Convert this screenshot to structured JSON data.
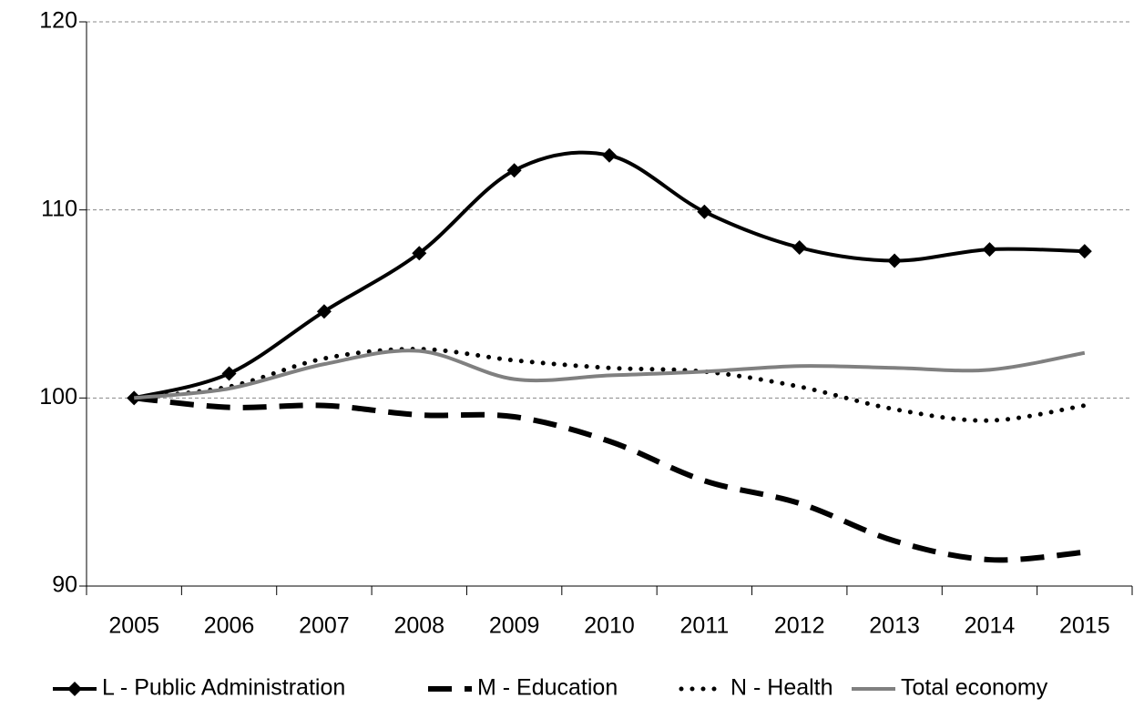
{
  "chart_data": {
    "type": "line",
    "categories": [
      "2005",
      "2006",
      "2007",
      "2008",
      "2009",
      "2010",
      "2011",
      "2012",
      "2013",
      "2014",
      "2015"
    ],
    "series": [
      {
        "name": "L - Public Administration",
        "color": "#000000",
        "line_style": "solid",
        "marker": "diamond",
        "values": [
          100,
          101.3,
          104.6,
          107.7,
          112.1,
          112.9,
          109.9,
          108.0,
          107.3,
          107.9,
          107.8
        ]
      },
      {
        "name": "M - Education",
        "color": "#000000",
        "line_style": "dash",
        "values": [
          100,
          99.5,
          99.6,
          99.1,
          99.0,
          97.7,
          95.6,
          94.4,
          92.4,
          91.4,
          91.8
        ]
      },
      {
        "name": "N - Health",
        "color": "#000000",
        "line_style": "dot",
        "values": [
          100,
          100.6,
          102.1,
          102.6,
          102.0,
          101.6,
          101.4,
          100.6,
          99.4,
          98.8,
          99.6
        ]
      },
      {
        "name": "Total economy",
        "color": "#808080",
        "line_style": "solid",
        "values": [
          100,
          100.5,
          101.8,
          102.5,
          101.0,
          101.2,
          101.4,
          101.7,
          101.6,
          101.5,
          102.4
        ]
      }
    ],
    "ylim": [
      90,
      120
    ],
    "yticks": [
      90,
      100,
      110,
      120
    ],
    "grid": true,
    "legend": "bottom"
  }
}
